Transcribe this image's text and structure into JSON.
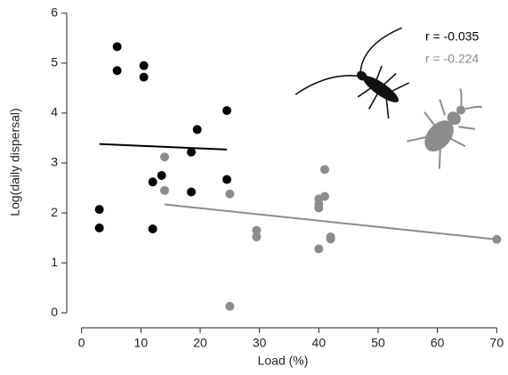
{
  "chart_data": {
    "type": "scatter",
    "xlabel": "Load (%)",
    "ylabel": "Log(daily dispersal)",
    "xlim": [
      -2.5,
      71
    ],
    "ylim": [
      -0.3,
      6.05
    ],
    "xticks": [
      0,
      10,
      20,
      30,
      40,
      50,
      60,
      70
    ],
    "yticks": [
      0,
      1,
      2,
      3,
      4,
      5,
      6
    ],
    "series": [
      {
        "color": "#000000",
        "x": [
          3,
          3,
          6,
          6,
          10.5,
          10.5,
          12,
          12,
          13.5,
          18.5,
          18.5,
          19.5,
          24.5,
          24.5
        ],
        "values": [
          2.07,
          1.7,
          5.33,
          4.85,
          4.95,
          4.72,
          2.62,
          1.68,
          2.75,
          3.22,
          2.42,
          3.67,
          4.05,
          2.67
        ]
      },
      {
        "color": "#8c8c8c",
        "x": [
          14,
          14,
          25,
          25,
          29.5,
          29.5,
          40,
          40,
          40,
          40,
          41,
          41,
          42,
          42,
          70
        ],
        "values": [
          3.12,
          2.45,
          2.38,
          0.13,
          1.65,
          1.52,
          2.28,
          2.17,
          2.1,
          1.28,
          2.87,
          2.33,
          1.52,
          1.48,
          1.47
        ]
      }
    ],
    "fit_lines": [
      {
        "color": "#000000",
        "x": [
          3,
          24.5
        ],
        "values": [
          3.38,
          3.27
        ]
      },
      {
        "color": "#8c8c8c",
        "x": [
          14,
          70
        ],
        "values": [
          2.17,
          1.47
        ]
      }
    ],
    "annotations": [
      {
        "text": "r = -0.035",
        "color": "#000000"
      },
      {
        "text": "r = -0.224",
        "color": "#8c8c8c"
      }
    ]
  }
}
